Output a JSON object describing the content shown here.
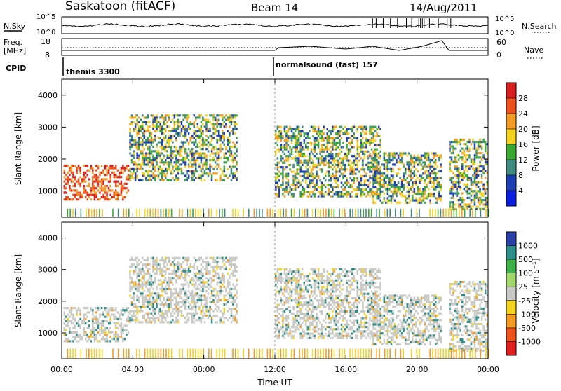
{
  "header": {
    "station": "Saskatoon (fitACF)",
    "beam": "Beam 14",
    "date": "14/Aug/2011"
  },
  "strips": {
    "nsky_label": "N.Sky",
    "nsky_ticks": [
      "10^5",
      "10^0"
    ],
    "nsearch_label": "N.Search",
    "nsearch_ticks": [
      "10^5",
      "10^0"
    ],
    "freq_label": "Freq.",
    "freq_unit": "[MHz]",
    "freq_ticks": [
      "18",
      "8"
    ],
    "nave_label": "Nave",
    "nave_ticks": [
      "60",
      "0"
    ],
    "cpid_label": "CPID",
    "cpid_modes": [
      {
        "name": "themis 3300",
        "start_hour": 0
      },
      {
        "name": "normalsound (fast) 157",
        "start_hour": 12
      }
    ]
  },
  "chart_data": [
    {
      "type": "heatmap",
      "parameter": "power",
      "ylabel": "Slant Range [km]",
      "yticks": [
        1000,
        2000,
        3000,
        4000
      ],
      "ylim": [
        180,
        4500
      ],
      "xlim_hours": [
        0,
        24
      ],
      "colorbar": {
        "label": "Power [dB]",
        "ticks": [
          "28",
          "24",
          "20",
          "16",
          "12",
          "8",
          "4"
        ],
        "colors": [
          "#d81e1e",
          "#f0521e",
          "#f39b22",
          "#f3d31e",
          "#3aaa35",
          "#3f8a7e",
          "#1d3fb5",
          "#0a1ee0"
        ]
      },
      "echo_regions": [
        {
          "hours": [
            0.1,
            3.8
          ],
          "range_km": [
            700,
            1800
          ],
          "level": "strong"
        },
        {
          "hours": [
            3.8,
            9.8
          ],
          "range_km": [
            1300,
            3400
          ],
          "level": "moderate"
        },
        {
          "hours": [
            12.0,
            18.0
          ],
          "range_km": [
            800,
            3000
          ],
          "level": "moderate"
        },
        {
          "hours": [
            17.5,
            21.4
          ],
          "range_km": [
            600,
            2200
          ],
          "level": "moderate"
        },
        {
          "hours": [
            21.8,
            24.0
          ],
          "range_km": [
            400,
            2600
          ],
          "level": "moderate"
        }
      ]
    },
    {
      "type": "heatmap",
      "parameter": "velocity",
      "ylabel": "Slant Range [km]",
      "yticks": [
        1000,
        2000,
        3000,
        4000
      ],
      "ylim": [
        180,
        4500
      ],
      "xlim_hours": [
        0,
        24
      ],
      "xlabel": "Time UT",
      "xticks": [
        "00:00",
        "04:00",
        "08:00",
        "12:00",
        "16:00",
        "20:00",
        "00:00"
      ],
      "colorbar": {
        "label": "Velocity [m s⁻¹]",
        "ticks": [
          "1000",
          "500",
          "100",
          "25",
          "-25",
          "-100",
          "-500",
          "-1000"
        ],
        "colors": [
          "#2a3fa8",
          "#2a8f8a",
          "#3fb34a",
          "#a3d96a",
          "#c8c8c4",
          "#f3d31e",
          "#f39b22",
          "#f0521e",
          "#e01e1e"
        ]
      }
    }
  ]
}
